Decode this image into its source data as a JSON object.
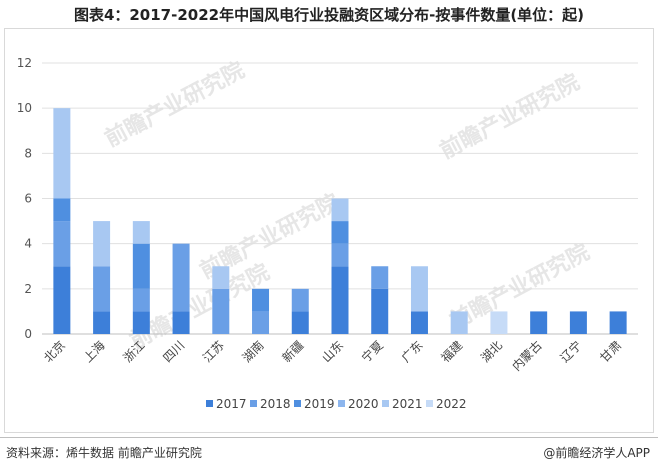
{
  "title": "图表4：2017-2022年中国风电行业投融资区域分布-按事件数量(单位：起)",
  "footer": {
    "source": "资料来源：烯牛数据 前瞻产业研究院",
    "brand": "@前瞻经济学人APP"
  },
  "watermark": "前瞻产业研究院",
  "chart_data": {
    "type": "bar",
    "stacked": true,
    "title": "图表4：2017-2022年中国风电行业投融资区域分布-按事件数量(单位：起)",
    "categories": [
      "北京",
      "上海",
      "浙江",
      "四川",
      "江苏",
      "湖南",
      "新疆",
      "山东",
      "宁夏",
      "广东",
      "福建",
      "湖北",
      "内蒙古",
      "辽宁",
      "甘肃"
    ],
    "series": [
      {
        "name": "2017",
        "color": "#3d7fd9",
        "values": [
          3,
          1,
          1,
          1,
          0,
          0,
          1,
          3,
          2,
          1,
          0,
          0,
          1,
          1,
          1
        ]
      },
      {
        "name": "2018",
        "color": "#6a9fe6",
        "values": [
          2,
          2,
          1,
          3,
          2,
          1,
          1,
          1,
          1,
          0,
          0,
          0,
          0,
          0,
          0
        ]
      },
      {
        "name": "2019",
        "color": "#4f8fe0",
        "values": [
          1,
          0,
          2,
          0,
          0,
          1,
          0,
          1,
          0,
          0,
          0,
          0,
          0,
          0,
          0
        ]
      },
      {
        "name": "2020",
        "color": "#8db6ee",
        "values": [
          0,
          0,
          0,
          0,
          0,
          0,
          0,
          0,
          0,
          0,
          0,
          0,
          0,
          0,
          0
        ]
      },
      {
        "name": "2021",
        "color": "#a8c8f2",
        "values": [
          4,
          2,
          1,
          0,
          1,
          0,
          0,
          1,
          0,
          2,
          1,
          0,
          0,
          0,
          0
        ]
      },
      {
        "name": "2022",
        "color": "#c6dbf7",
        "values": [
          0,
          0,
          0,
          0,
          0,
          0,
          0,
          0,
          0,
          0,
          0,
          1,
          0,
          0,
          0
        ]
      }
    ],
    "y_ticks": [
      0,
      2,
      4,
      6,
      8,
      10,
      12
    ],
    "ylim": [
      0,
      12
    ],
    "grid": true,
    "legend": "bottom-center"
  }
}
